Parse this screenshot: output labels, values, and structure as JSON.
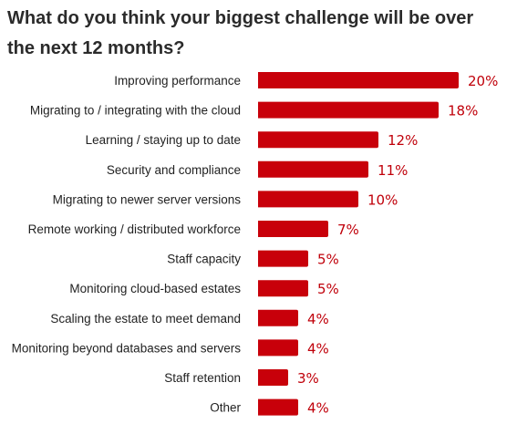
{
  "chart_data": {
    "type": "bar",
    "orientation": "horizontal",
    "title": "What do you think your biggest challenge will be over the next 12 months?",
    "categories": [
      "Improving performance",
      "Migrating to / integrating with the cloud",
      "Learning / staying up to date",
      "Security and compliance",
      "Migrating to newer server versions",
      "Remote working / distributed workforce",
      "Staff capacity",
      "Monitoring cloud-based estates",
      "Scaling the estate to meet demand",
      "Monitoring beyond databases and servers",
      "Staff retention",
      "Other"
    ],
    "values": [
      20,
      18,
      12,
      11,
      10,
      7,
      5,
      5,
      4,
      4,
      3,
      4
    ],
    "value_labels": [
      "20%",
      "18%",
      "12%",
      "11%",
      "10%",
      "7%",
      "5%",
      "5%",
      "4%",
      "4%",
      "3%",
      "4%"
    ],
    "unit": "%",
    "xlim": [
      0,
      20
    ],
    "grid": false,
    "bar_color": "#c8000a",
    "label_color": "#c0000a"
  }
}
